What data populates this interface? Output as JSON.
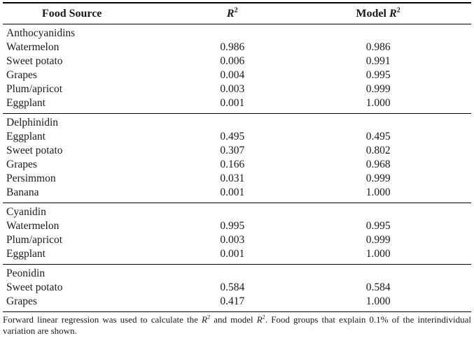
{
  "table": {
    "headers": {
      "food_source": "Food Source",
      "r_base": "R",
      "r_sup": "2",
      "model_prefix": "Model ",
      "model_r_base": "R",
      "model_r_sup": "2"
    },
    "sections": [
      {
        "group": "Anthocyanidins",
        "rows": [
          {
            "food": "Watermelon",
            "r2": "0.986",
            "model_r2": "0.986"
          },
          {
            "food": "Sweet potato",
            "r2": "0.006",
            "model_r2": "0.991"
          },
          {
            "food": "Grapes",
            "r2": "0.004",
            "model_r2": "0.995"
          },
          {
            "food": "Plum/apricot",
            "r2": "0.003",
            "model_r2": "0.999"
          },
          {
            "food": "Eggplant",
            "r2": "0.001",
            "model_r2": "1.000"
          }
        ]
      },
      {
        "group": "Delphinidin",
        "rows": [
          {
            "food": "Eggplant",
            "r2": "0.495",
            "model_r2": "0.495"
          },
          {
            "food": "Sweet potato",
            "r2": "0.307",
            "model_r2": "0.802"
          },
          {
            "food": "Grapes",
            "r2": "0.166",
            "model_r2": "0.968"
          },
          {
            "food": "Persimmon",
            "r2": "0.031",
            "model_r2": "0.999"
          },
          {
            "food": "Banana",
            "r2": "0.001",
            "model_r2": "1.000"
          }
        ]
      },
      {
        "group": "Cyanidin",
        "rows": [
          {
            "food": "Watermelon",
            "r2": "0.995",
            "model_r2": "0.995"
          },
          {
            "food": "Plum/apricot",
            "r2": "0.003",
            "model_r2": "0.999"
          },
          {
            "food": "Eggplant",
            "r2": "0.001",
            "model_r2": "1.000"
          }
        ]
      },
      {
        "group": "Peonidin",
        "rows": [
          {
            "food": "Sweet potato",
            "r2": "0.584",
            "model_r2": "0.584"
          },
          {
            "food": "Grapes",
            "r2": "0.417",
            "model_r2": "1.000"
          }
        ]
      }
    ]
  },
  "footnote": {
    "part1": "Forward linear regression was used to calculate the ",
    "r1": "R",
    "sup1": "2",
    "part2": " and model ",
    "r2": "R",
    "sup2": "2",
    "part3": ". Food groups that explain 0.1% of the interindividual variation are shown."
  },
  "colors": {
    "text": "#1a1a1a",
    "rule": "#000000",
    "background": "#ffffff"
  }
}
